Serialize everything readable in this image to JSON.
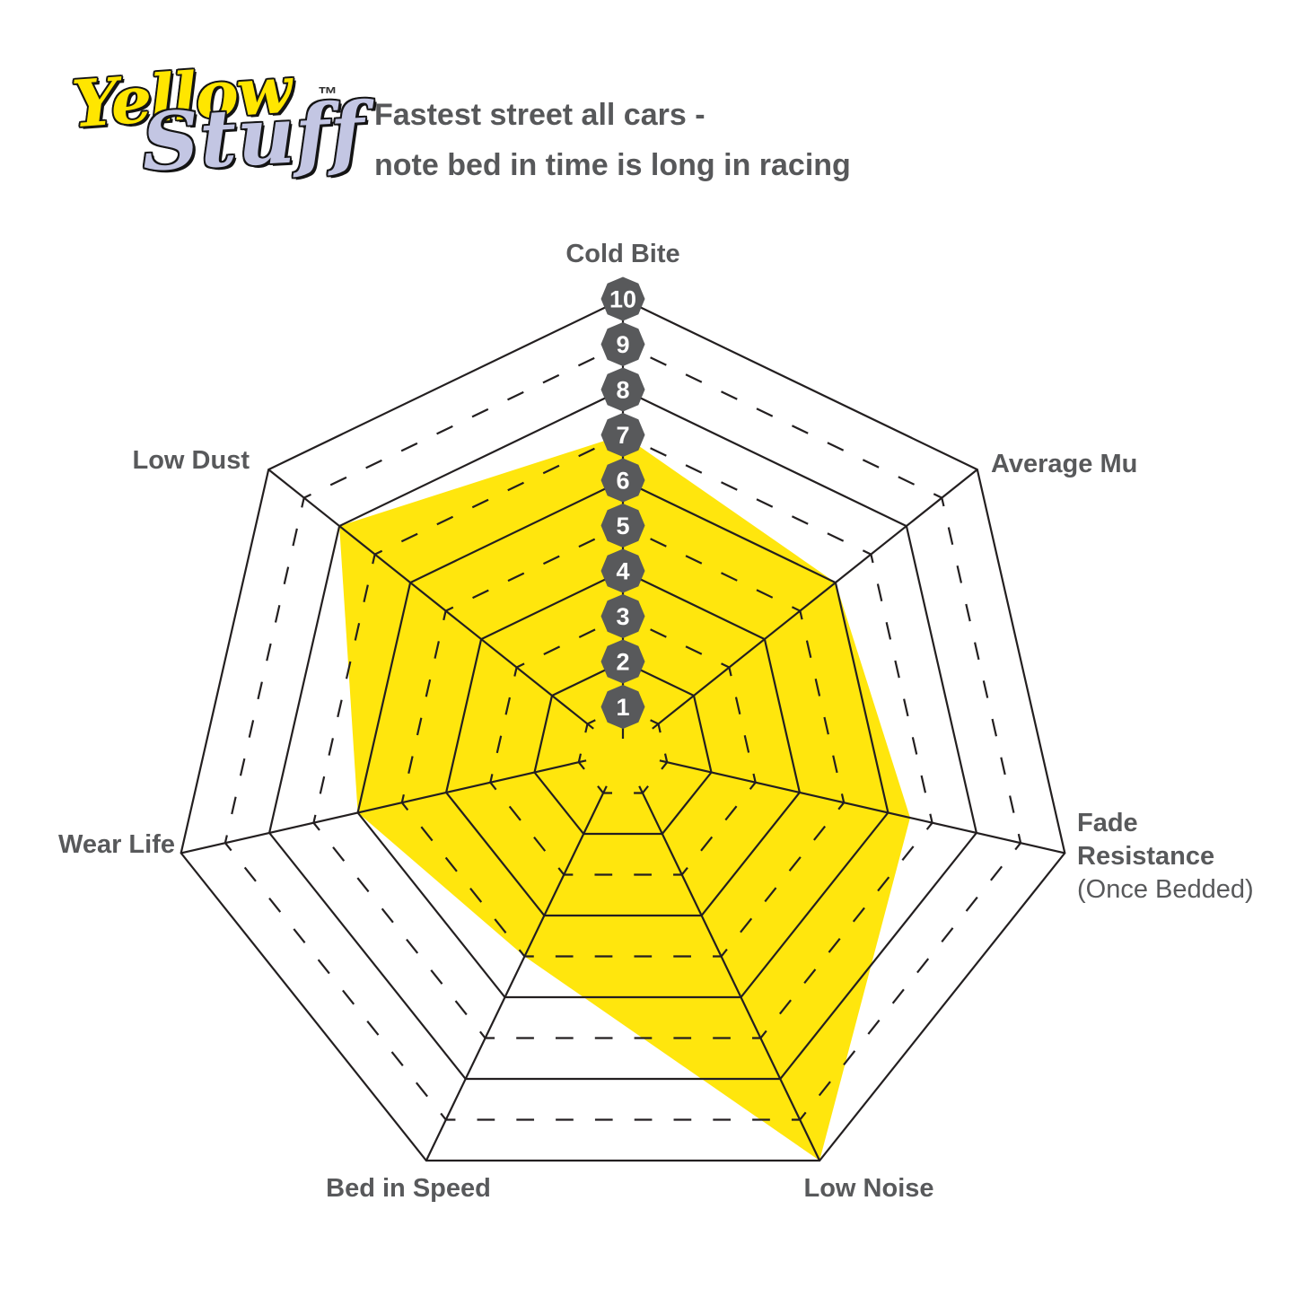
{
  "logo": {
    "word1": "Yellow",
    "word2": "Stuff",
    "trademark": "™"
  },
  "title": {
    "line1": "Fastest street all cars -",
    "line2": "note bed in time is long in racing"
  },
  "labels": {
    "cold_bite": "Cold Bite",
    "average_mu": "Average Mu",
    "fade_line1": "Fade",
    "fade_line2": "Resistance",
    "fade_note": "(Once Bedded)",
    "low_noise": "Low Noise",
    "bed_in_speed": "Bed in Speed",
    "wear_life": "Wear Life",
    "low_dust": "Low Dust"
  },
  "chart_data": {
    "type": "radar",
    "categories": [
      "Cold Bite",
      "Average Mu",
      "Fade Resistance (Once Bedded)",
      "Low Noise",
      "Bed in Speed",
      "Wear Life",
      "Low Dust"
    ],
    "series": [
      {
        "name": "Yellowstuff",
        "values": [
          7,
          6,
          6.5,
          10,
          5,
          6,
          8
        ]
      }
    ],
    "axis_range": [
      0,
      10
    ],
    "tick_labels": [
      1,
      2,
      3,
      4,
      5,
      6,
      7,
      8,
      9,
      10
    ],
    "rings": 10,
    "grid_style": "even rings solid, odd rings dashed; 7 radial spokes",
    "legend": "none",
    "fill_color": "#ffe60d",
    "grid_color": "#231f20",
    "badge_color": "#58595b",
    "badge_text_color": "#ffffff",
    "label_color": "#58595b"
  }
}
